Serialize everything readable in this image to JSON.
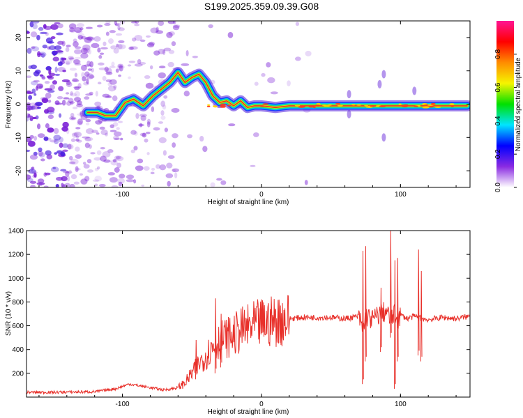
{
  "title": "S199.2025.359.09.39.G08",
  "colors": {
    "snr_line": "#e8302a",
    "frame": "#000000",
    "track_core": "#e8302a",
    "track_mid": "#f2e600",
    "track_outer": "#00c8e6",
    "speckle": "#7a1fd6"
  },
  "chart_data": [
    {
      "type": "heatmap",
      "name": "spectrogram",
      "xlabel": "Height of straight line (km)",
      "ylabel": "Frequency (Hz)",
      "xlim": [
        -169,
        150
      ],
      "ylim": [
        -25,
        25
      ],
      "xticks": [
        -100,
        0,
        100
      ],
      "yticks": [
        -20,
        -10,
        0,
        10,
        20
      ],
      "xtick_labels": [
        "-100",
        "0",
        "100"
      ],
      "ytick_labels": [
        "-20",
        "-10",
        "0",
        "10",
        "20"
      ],
      "colorbar": {
        "label": "Normalized spectral amplitude",
        "range": [
          0.0,
          1.0
        ],
        "ticks": [
          0.0,
          0.2,
          0.4,
          0.6,
          0.8
        ],
        "tick_labels": [
          "0.0",
          "0.2",
          "0.4",
          "0.6",
          "0.8"
        ],
        "colormap": [
          "#ffffff",
          "#8a2be2",
          "#0000ff",
          "#00e5ff",
          "#00e000",
          "#f5f500",
          "#ff8c00",
          "#ff0000",
          "#ff1493"
        ]
      },
      "track": {
        "x": [
          -125,
          -118,
          -112,
          -105,
          -98,
          -92,
          -85,
          -78,
          -72,
          -66,
          -60,
          -55,
          -50,
          -45,
          -40,
          -35,
          -30,
          -25,
          -20,
          -15,
          -10,
          -5,
          0,
          10,
          20,
          40,
          60,
          70,
          80,
          90,
          100,
          110,
          120,
          130,
          140,
          148
        ],
        "y": [
          -2.5,
          -2.5,
          -3.5,
          -3.5,
          0.5,
          1.5,
          -0.5,
          2.5,
          4.5,
          6.5,
          9.5,
          6.5,
          8.0,
          9.0,
          6.5,
          2.5,
          0.5,
          1.0,
          -0.5,
          1.0,
          -1.0,
          -0.5,
          -0.5,
          -1.0,
          -0.5,
          -0.5,
          -0.5,
          -0.5,
          -0.5,
          -0.5,
          -0.5,
          -0.5,
          -0.5,
          -0.5,
          -0.5,
          -0.5
        ]
      }
    },
    {
      "type": "line",
      "name": "snr",
      "xlabel": "Height of straight line (km)",
      "ylabel": "SNR (10 * v/v)",
      "xlim": [
        -169,
        150
      ],
      "ylim": [
        0,
        1400
      ],
      "xticks": [
        -100,
        0,
        100
      ],
      "yticks": [
        200,
        400,
        600,
        800,
        1000,
        1200,
        1400
      ],
      "xtick_labels": [
        "-100",
        "0",
        "100"
      ],
      "ytick_labels": [
        "200",
        "400",
        "600",
        "800",
        "1000",
        "1200",
        "1400"
      ],
      "series": [
        {
          "name": "SNR",
          "x": [
            -169,
            -150,
            -120,
            -105,
            -95,
            -85,
            -70,
            -60,
            -55,
            -50,
            -45,
            -40,
            -35,
            -30,
            -25,
            -20,
            -15,
            -10,
            -5,
            0,
            10,
            20,
            30,
            40,
            50,
            60,
            70,
            73,
            75,
            80,
            85,
            90,
            93,
            95,
            98,
            100,
            105,
            110,
            115,
            120,
            130,
            140,
            150
          ],
          "values": [
            40,
            40,
            45,
            70,
            110,
            90,
            60,
            80,
            120,
            200,
            280,
            350,
            420,
            480,
            500,
            520,
            560,
            580,
            600,
            620,
            640,
            660,
            670,
            670,
            670,
            660,
            680,
            560,
            680,
            650,
            700,
            720,
            640,
            700,
            650,
            690,
            660,
            680,
            660,
            650,
            670,
            660,
            680
          ]
        }
      ],
      "spikes": [
        {
          "x": -47,
          "max": 480,
          "min": 150
        },
        {
          "x": -33,
          "max": 830,
          "min": 200
        },
        {
          "x": -29,
          "max": 700,
          "min": 250
        },
        {
          "x": 73,
          "max": 1230,
          "min": 110
        },
        {
          "x": 75,
          "max": 1270,
          "min": 300
        },
        {
          "x": 86,
          "max": 920,
          "min": 380
        },
        {
          "x": 93,
          "max": 1400,
          "min": 500
        },
        {
          "x": 96,
          "max": 1150,
          "min": 70
        },
        {
          "x": 98,
          "max": 1170,
          "min": 300
        },
        {
          "x": 113,
          "max": 1240,
          "min": 350
        },
        {
          "x": 115,
          "max": 1060,
          "min": 300
        }
      ]
    }
  ]
}
